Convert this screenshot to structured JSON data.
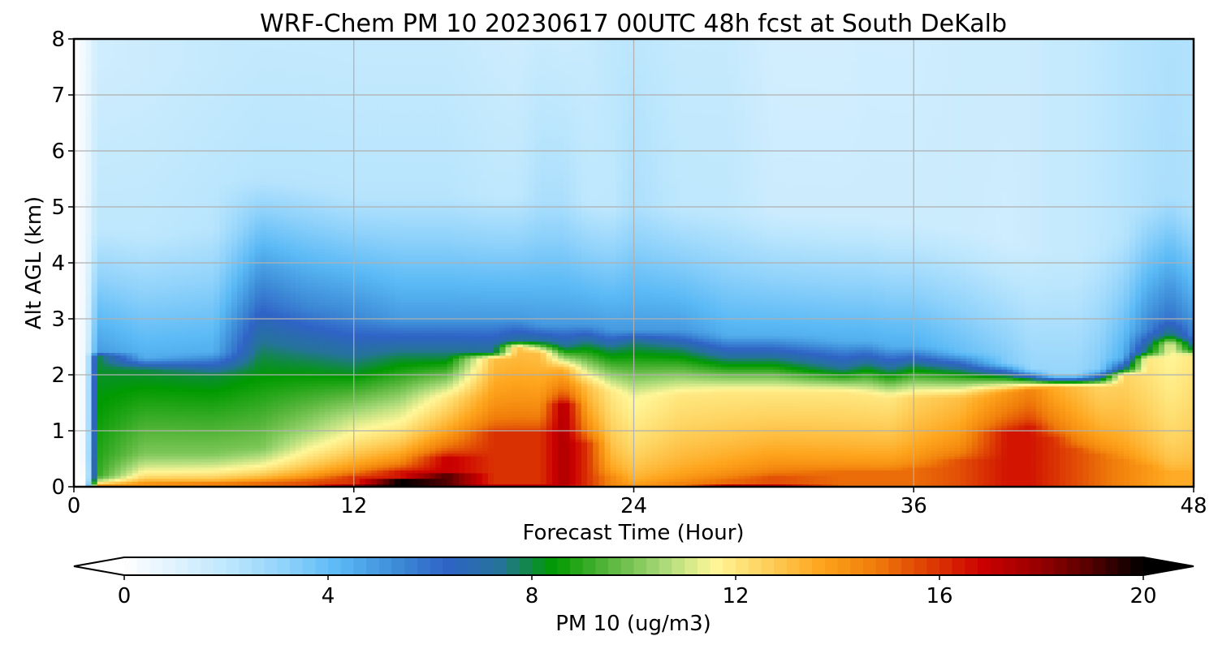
{
  "chart_data": {
    "type": "heatmap",
    "title": "WRF-Chem PM 10  20230617 00UTC 48h fcst at South DeKalb",
    "xlabel": "Forecast Time (Hour)",
    "ylabel": "Alt AGL (km)",
    "xlim": [
      0,
      48
    ],
    "ylim": [
      0,
      8
    ],
    "xticks": [
      0,
      12,
      24,
      36,
      48
    ],
    "yticks": [
      0,
      1,
      2,
      3,
      4,
      5,
      6,
      7,
      8
    ],
    "grid": true,
    "colorbar": {
      "label": "PM 10  (ug/m3)",
      "range": [
        0,
        20
      ],
      "ticks": [
        0,
        4,
        8,
        12,
        16,
        20
      ],
      "extend": "both",
      "orientation": "horizontal",
      "colors": [
        "#ffffff",
        "#ddf2fe",
        "#bbe6fd",
        "#8fd2fb",
        "#5ab9f5",
        "#3f8fd9",
        "#2f63c6",
        "#25739a",
        "#009a00",
        "#55b53a",
        "#a5d876",
        "#fff799",
        "#fecf5a",
        "#fea41c",
        "#f07d0a",
        "#dd3d04",
        "#cc0000",
        "#9a0000",
        "#550000",
        "#000000"
      ]
    },
    "hours": [
      0,
      0.5,
      1,
      3,
      6,
      8,
      10,
      12,
      14,
      16,
      18,
      19,
      20,
      21,
      22,
      23,
      24,
      26,
      28,
      30,
      33,
      34,
      35,
      36,
      38,
      40,
      41,
      42,
      43,
      44,
      45,
      46,
      47,
      48
    ],
    "top_layer_km": [
      0,
      0.6,
      2.4,
      2.3,
      2.4,
      3.3,
      3.2,
      3.0,
      3.0,
      3.0,
      3.0,
      3.0,
      2.9,
      2.9,
      2.9,
      2.8,
      2.8,
      2.8,
      2.7,
      2.7,
      2.6,
      2.6,
      2.5,
      2.5,
      2.4,
      2.2,
      2.1,
      2.0,
      2.0,
      2.1,
      2.3,
      2.8,
      3.0,
      2.7
    ],
    "green_top_km": [
      0,
      0.5,
      2.35,
      2.1,
      2.0,
      2.3,
      2.2,
      2.1,
      2.3,
      2.3,
      2.4,
      2.6,
      2.6,
      2.5,
      2.6,
      2.5,
      2.6,
      2.5,
      2.3,
      2.3,
      2.1,
      2.2,
      2.1,
      2.2,
      2.1,
      2.0,
      1.95,
      1.9,
      1.9,
      1.95,
      2.1,
      2.4,
      2.7,
      2.45
    ],
    "orange_top_km": [
      0,
      0,
      0.2,
      0.6,
      0.6,
      0.7,
      1.0,
      1.2,
      1.4,
      1.6,
      2.3,
      2.5,
      2.4,
      2.1,
      1.8,
      1.7,
      1.6,
      1.65,
      1.7,
      1.7,
      1.7,
      1.65,
      1.6,
      1.6,
      1.6,
      1.7,
      1.75,
      1.8,
      1.8,
      1.8,
      2.0,
      2.3,
      2.55,
      2.35
    ],
    "red_top_km": [
      0,
      0,
      0.05,
      0.1,
      0.08,
      0.1,
      0.12,
      0.2,
      0.3,
      0.55,
      1.0,
      1.0,
      1.0,
      1.5,
      0.8,
      0.2,
      0.05,
      0.1,
      0.15,
      0.2,
      0.3,
      0.3,
      0.3,
      0.35,
      0.5,
      1.0,
      1.1,
      0.9,
      0.7,
      0.6,
      0.5,
      0.4,
      0.3,
      0.3
    ],
    "dark_top_km": [
      0,
      0,
      0,
      0,
      0,
      0,
      0.02,
      0.05,
      0.15,
      0.25,
      0.05,
      0.05,
      0.05,
      0.05,
      0,
      0,
      0,
      0.02,
      0.03,
      0.05,
      0.02,
      0.02,
      0.02,
      0,
      0,
      0,
      0,
      0,
      0,
      0,
      0,
      0,
      0,
      0
    ],
    "dark_values": [
      0,
      0,
      0,
      0,
      0,
      0,
      17,
      18,
      20,
      19,
      17,
      17,
      17,
      17,
      0,
      0,
      0,
      17,
      17,
      17,
      17,
      17,
      17,
      0,
      0,
      0,
      0,
      0,
      0,
      0,
      0,
      0,
      0,
      0
    ],
    "red_values": [
      0,
      0,
      14,
      14,
      14.5,
      15,
      15.5,
      16,
      16.5,
      17,
      16,
      16,
      16,
      17.5,
      16,
      14.5,
      14,
      14.5,
      15,
      15.5,
      15,
      15,
      15,
      15,
      15.5,
      16.5,
      16.5,
      16,
      15.5,
      15,
      14.5,
      14,
      13.5,
      13.5
    ],
    "orange_values": [
      0,
      0,
      9,
      10,
      10,
      10,
      10.5,
      11,
      11,
      12,
      13,
      13,
      13,
      13.5,
      13,
      12,
      11.5,
      12,
      12,
      12,
      12,
      12,
      12,
      12.5,
      13,
      14,
      14.5,
      13.5,
      13,
      12.5,
      12.5,
      12,
      11.5,
      12
    ],
    "green_values": [
      0,
      0.5,
      8,
      8,
      8,
      8,
      8,
      8,
      8,
      8,
      7.5,
      7.5,
      7.5,
      7.5,
      7.5,
      7.5,
      7.5,
      7.5,
      7.5,
      7.5,
      7.5,
      7.5,
      7.5,
      7.5,
      7.5,
      7.5,
      7,
      7,
      7,
      7,
      7.5,
      8,
      8,
      8
    ],
    "blue_values": [
      0,
      0.5,
      5,
      4.5,
      4.5,
      6,
      5.5,
      5.5,
      5,
      5,
      5,
      5,
      5,
      5,
      5,
      5,
      5,
      5,
      4.5,
      4.5,
      4.5,
      4.5,
      4.5,
      4.5,
      4,
      3.5,
      3,
      3,
      3,
      3.5,
      4.5,
      5.5,
      6,
      5.5
    ],
    "aloft_values": [
      0,
      0.5,
      2,
      2,
      2.2,
      2.2,
      2.2,
      2.2,
      2.2,
      2.2,
      2,
      2,
      2.5,
      2.5,
      2,
      2,
      2.5,
      2,
      2,
      1.6,
      1.6,
      1.6,
      1.6,
      1.6,
      1.6,
      1.5,
      1.6,
      1.8,
      1.8,
      2,
      2.2,
      2.4,
      2.5,
      2.4
    ],
    "top_values": [
      0,
      0.5,
      1.5,
      1.6,
      1.8,
      1.8,
      1.8,
      1.8,
      1.8,
      1.8,
      1.6,
      1.5,
      1.7,
      1.6,
      1.7,
      2,
      2.1,
      1.8,
      1.8,
      1.4,
      1.4,
      1.5,
      1.5,
      1.5,
      1.6,
      1.6,
      1.6,
      1.8,
      1.8,
      2,
      2.2,
      2.3,
      2.4,
      2.3
    ]
  }
}
